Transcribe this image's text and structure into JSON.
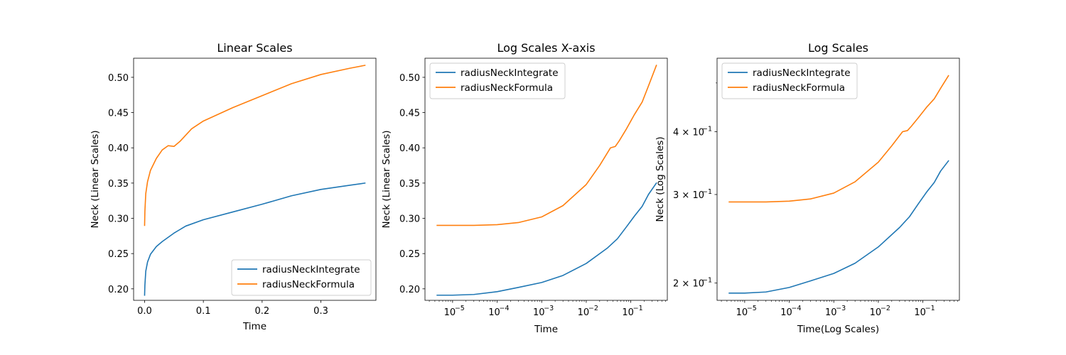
{
  "chart_data": [
    {
      "type": "line",
      "title": "Linear Scales",
      "xlabel": "Time",
      "ylabel": "Neck (Linear Scales)",
      "xscale": "linear",
      "yscale": "linear",
      "xlim": [
        -0.0187,
        0.3937
      ],
      "ylim": [
        0.1837,
        0.5271
      ],
      "xticks": [
        0.0,
        0.1,
        0.2,
        0.3
      ],
      "xtick_labels": [
        "0.0",
        "0.1",
        "0.2",
        "0.3"
      ],
      "yticks": [
        0.2,
        0.25,
        0.3,
        0.35,
        0.4,
        0.45,
        0.5
      ],
      "ytick_labels": [
        "0.20",
        "0.25",
        "0.30",
        "0.35",
        "0.40",
        "0.45",
        "0.50"
      ],
      "grid": false,
      "legend": "lower-right",
      "series": [
        {
          "name": "radiusNeckIntegrate",
          "color": "#1f77b4",
          "x": [
            0.0,
            0.0005,
            0.002,
            0.005,
            0.01,
            0.02,
            0.03,
            0.05,
            0.07,
            0.1,
            0.15,
            0.2,
            0.25,
            0.3,
            0.35,
            0.375
          ],
          "y": [
            0.191,
            0.205,
            0.225,
            0.238,
            0.249,
            0.26,
            0.267,
            0.279,
            0.289,
            0.298,
            0.309,
            0.32,
            0.332,
            0.341,
            0.347,
            0.35
          ]
        },
        {
          "name": "radiusNeckFormula",
          "color": "#ff7f0e",
          "x": [
            0.0,
            0.0005,
            0.002,
            0.005,
            0.01,
            0.02,
            0.03,
            0.04,
            0.05,
            0.06,
            0.08,
            0.1,
            0.15,
            0.2,
            0.25,
            0.3,
            0.35,
            0.375
          ],
          "y": [
            0.29,
            0.31,
            0.335,
            0.352,
            0.368,
            0.385,
            0.397,
            0.403,
            0.402,
            0.409,
            0.427,
            0.438,
            0.457,
            0.474,
            0.491,
            0.504,
            0.513,
            0.517
          ]
        }
      ]
    },
    {
      "type": "line",
      "title": "Log Scales X-axis",
      "xlabel": "Time",
      "ylabel": "Neck (Linear Scales)",
      "xscale": "log",
      "yscale": "linear",
      "xlim": [
        2.4e-06,
        0.66
      ],
      "ylim": [
        0.1837,
        0.5271
      ],
      "xticks": [
        1e-05,
        0.0001,
        0.001,
        0.01,
        0.1
      ],
      "xtick_labels": [
        "10",
        "10",
        "10",
        "10",
        "10"
      ],
      "xtick_exponents": [
        "−5",
        "−4",
        "−3",
        "−2",
        "−1"
      ],
      "yticks": [
        0.2,
        0.25,
        0.3,
        0.35,
        0.4,
        0.45,
        0.5
      ],
      "ytick_labels": [
        "0.20",
        "0.25",
        "0.30",
        "0.35",
        "0.40",
        "0.45",
        "0.50"
      ],
      "grid": false,
      "legend": "upper-left",
      "series": [
        {
          "name": "radiusNeckIntegrate",
          "color": "#1f77b4",
          "x": [
            4.5e-06,
            1e-05,
            3e-05,
            0.0001,
            0.0003,
            0.001,
            0.003,
            0.01,
            0.03,
            0.05,
            0.08,
            0.12,
            0.18,
            0.25,
            0.375
          ],
          "y": [
            0.191,
            0.191,
            0.192,
            0.196,
            0.202,
            0.209,
            0.219,
            0.236,
            0.258,
            0.271,
            0.288,
            0.303,
            0.317,
            0.334,
            0.35
          ]
        },
        {
          "name": "radiusNeckFormula",
          "color": "#ff7f0e",
          "x": [
            4.5e-06,
            1e-05,
            3e-05,
            0.0001,
            0.0003,
            0.001,
            0.003,
            0.01,
            0.02,
            0.035,
            0.045,
            0.055,
            0.08,
            0.12,
            0.18,
            0.25,
            0.375
          ],
          "y": [
            0.29,
            0.29,
            0.29,
            0.291,
            0.294,
            0.302,
            0.318,
            0.348,
            0.375,
            0.4,
            0.402,
            0.41,
            0.427,
            0.447,
            0.465,
            0.488,
            0.517
          ]
        }
      ]
    },
    {
      "type": "line",
      "title": "Log Scales",
      "xlabel": "Time(Log Scales)",
      "ylabel": "Neck (Log Scales)",
      "xscale": "log",
      "yscale": "log",
      "xlim": [
        2.4e-06,
        0.66
      ],
      "ylim": [
        0.1848,
        0.56
      ],
      "xticks": [
        1e-05,
        0.0001,
        0.001,
        0.01,
        0.1
      ],
      "xtick_labels": [
        "10",
        "10",
        "10",
        "10",
        "10"
      ],
      "xtick_exponents": [
        "−5",
        "−4",
        "−3",
        "−2",
        "−1"
      ],
      "yticks": [
        0.2,
        0.3,
        0.4
      ],
      "ytick_labels": [
        "2 × 10",
        "3 × 10",
        "4 × 10"
      ],
      "ytick_exponents": [
        "−1",
        "−1",
        "−1"
      ],
      "grid": false,
      "legend": "upper-left",
      "series": [
        {
          "name": "radiusNeckIntegrate",
          "color": "#1f77b4",
          "x": [
            4.5e-06,
            1e-05,
            3e-05,
            0.0001,
            0.0003,
            0.001,
            0.003,
            0.01,
            0.03,
            0.05,
            0.08,
            0.12,
            0.18,
            0.25,
            0.375
          ],
          "y": [
            0.191,
            0.191,
            0.192,
            0.196,
            0.202,
            0.209,
            0.219,
            0.236,
            0.258,
            0.271,
            0.288,
            0.303,
            0.317,
            0.334,
            0.35
          ]
        },
        {
          "name": "radiusNeckFormula",
          "color": "#ff7f0e",
          "x": [
            4.5e-06,
            1e-05,
            3e-05,
            0.0001,
            0.0003,
            0.001,
            0.003,
            0.01,
            0.02,
            0.035,
            0.045,
            0.055,
            0.08,
            0.12,
            0.18,
            0.25,
            0.375
          ],
          "y": [
            0.29,
            0.29,
            0.29,
            0.291,
            0.294,
            0.302,
            0.318,
            0.348,
            0.375,
            0.4,
            0.402,
            0.41,
            0.427,
            0.447,
            0.465,
            0.488,
            0.517
          ]
        }
      ]
    }
  ]
}
